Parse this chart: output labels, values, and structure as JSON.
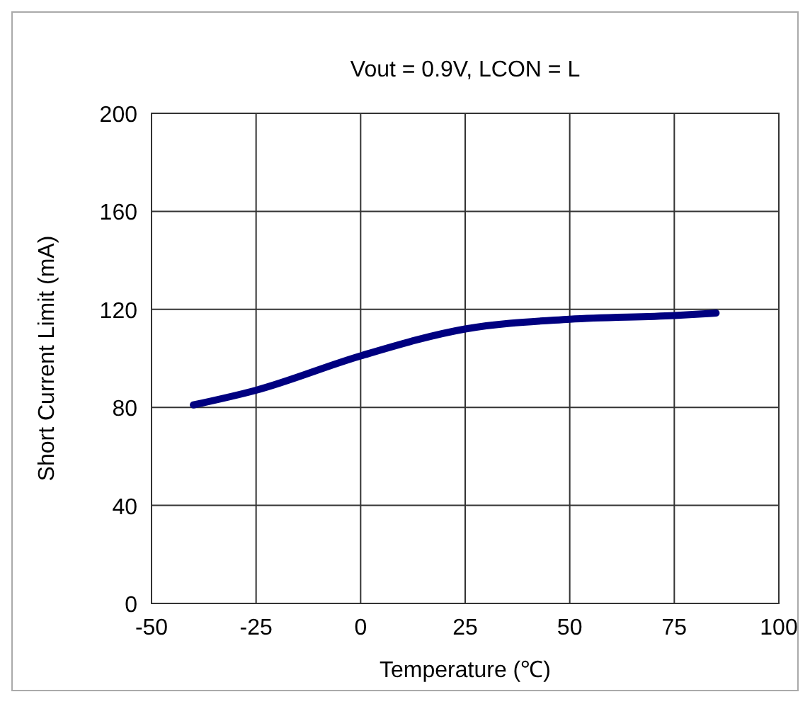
{
  "chart_data": {
    "type": "line",
    "title": "Vout = 0.9V, LCON = L",
    "xlabel": "Temperature (℃)",
    "ylabel": "Short Current Limit (mA)",
    "xlim": [
      -50,
      100
    ],
    "xticks": [
      -50,
      -25,
      0,
      25,
      50,
      75,
      100
    ],
    "ylim": [
      0,
      200
    ],
    "yticks": [
      0,
      40,
      80,
      120,
      160,
      200
    ],
    "grid": true,
    "series": [
      {
        "color": "#000080",
        "x": [
          -40,
          -25,
          0,
          25,
          50,
          75,
          85
        ],
        "values": [
          81,
          87,
          101,
          112,
          116,
          117.5,
          118.5
        ]
      }
    ]
  }
}
